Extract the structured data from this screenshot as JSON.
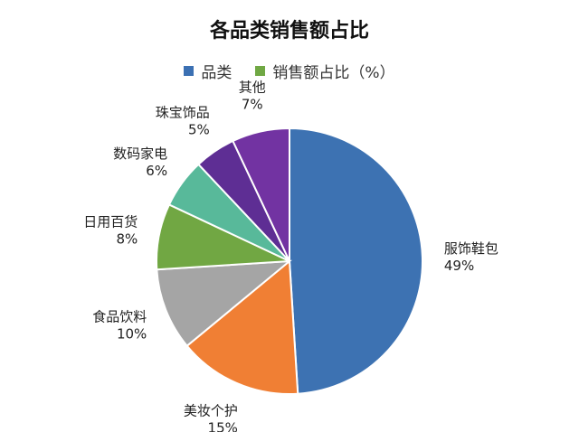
{
  "chart_data": {
    "type": "pie",
    "title": "各品类销售额占比",
    "legend": [
      {
        "label": "品类",
        "color": "#3B70B3"
      },
      {
        "label": "销售额占比（%）",
        "color": "#70A844"
      }
    ],
    "legend_position": "top",
    "start_angle_deg": 0,
    "direction": "clockwise",
    "slices": [
      {
        "label": "服饰鞋包",
        "value": 49,
        "value_label": "49%",
        "color": "#3D72B2"
      },
      {
        "label": "美妆个护",
        "value": 15,
        "value_label": "15%",
        "color": "#F07F34"
      },
      {
        "label": "食品饮料",
        "value": 10,
        "value_label": "10%",
        "color": "#A5A5A5"
      },
      {
        "label": "日用百货",
        "value": 8,
        "value_label": "8%",
        "color": "#71A743"
      },
      {
        "label": "数码家电",
        "value": 6,
        "value_label": "6%",
        "color": "#58B99A"
      },
      {
        "label": "珠宝饰品",
        "value": 5,
        "value_label": "5%",
        "color": "#5E2E94"
      },
      {
        "label": "其他",
        "value": 7,
        "value_label": "7%",
        "color": "#7233A2"
      }
    ]
  }
}
